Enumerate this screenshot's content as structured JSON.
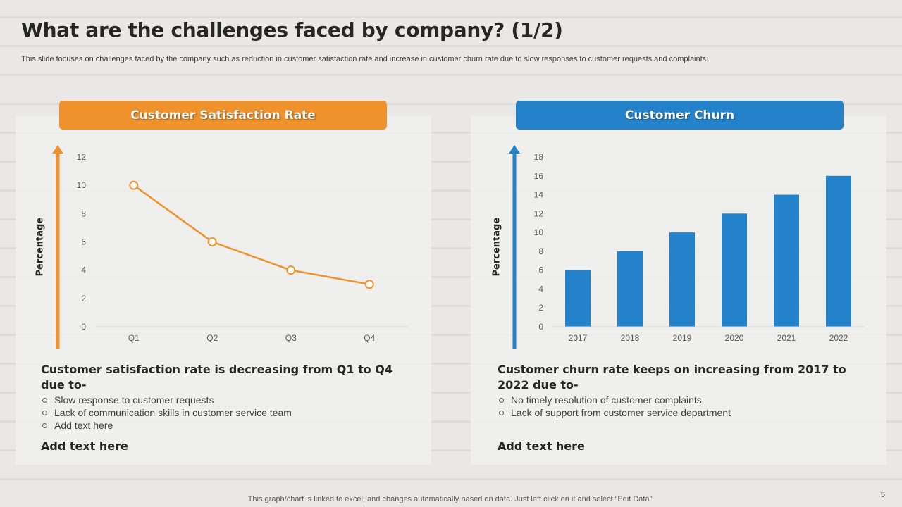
{
  "title": "What are the challenges faced by company? (1/2)",
  "subtitle": "This slide focuses on challenges faced by the company such as reduction in customer satisfaction rate and increase in customer churn rate due to slow responses to customer requests and complaints.",
  "colors": {
    "orange": "#f0922b",
    "blue": "#2382c9"
  },
  "left_panel": {
    "header": "Customer Satisfaction Rate",
    "summary": "Customer satisfaction rate is decreasing from Q1 to Q4 due to-",
    "bullets": [
      "Slow response to customer requests",
      "Lack of communication skills in customer service team",
      "Add text here"
    ],
    "add_text": "Add text here"
  },
  "right_panel": {
    "header": "Customer Churn",
    "summary": "Customer churn rate keeps on increasing from 2017 to 2022 due to-",
    "bullets": [
      "No timely resolution of customer complaints",
      "Lack of support from customer service department"
    ],
    "add_text": "Add text here"
  },
  "chart_data": [
    {
      "type": "line",
      "title": "Customer Satisfaction Rate",
      "xlabel": "",
      "ylabel": "Percentage",
      "categories": [
        "Q1",
        "Q2",
        "Q3",
        "Q4"
      ],
      "values": [
        10,
        6,
        4,
        3
      ],
      "ylim": [
        0,
        12
      ],
      "yticks": [
        0,
        2,
        4,
        6,
        8,
        10,
        12
      ],
      "color": "#f0922b"
    },
    {
      "type": "bar",
      "title": "Customer Churn",
      "xlabel": "",
      "ylabel": "Percentage",
      "categories": [
        "2017",
        "2018",
        "2019",
        "2020",
        "2021",
        "2022"
      ],
      "values": [
        6,
        8,
        10,
        12,
        14,
        16
      ],
      "ylim": [
        0,
        18
      ],
      "yticks": [
        0,
        2,
        4,
        6,
        8,
        10,
        12,
        14,
        16,
        18
      ],
      "color": "#2382c9"
    }
  ],
  "footer": "This graph/chart is linked to excel,  and changes automatically based on data. Just left click on it and select “Edit Data”.",
  "page_number": "5"
}
